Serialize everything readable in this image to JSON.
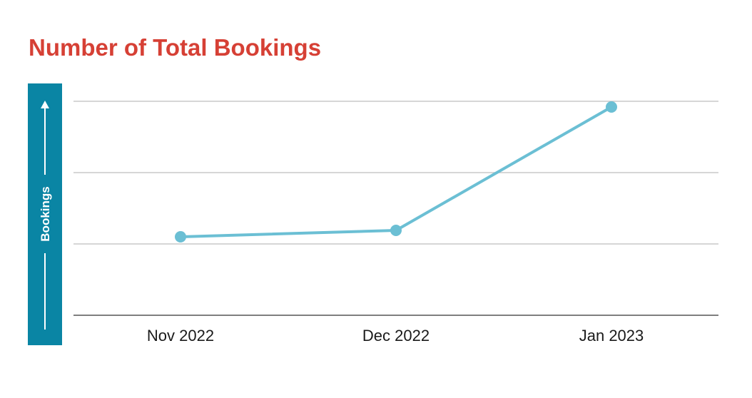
{
  "title": "Number of Total Bookings",
  "colors": {
    "title": "#d64035",
    "axis_banner": "#0a85a4",
    "series": "#6bbfd4",
    "grid": "#c8c8c8",
    "baseline": "#555555"
  },
  "chart_data": {
    "type": "line",
    "title": "Number of Total Bookings",
    "xlabel": "",
    "ylabel": "Bookings",
    "ylabel_style": "vertical banner with up arrow",
    "categories": [
      "Nov 2022",
      "Dec 2022",
      "Jan 2023"
    ],
    "series": [
      {
        "values": [
          1.1,
          1.19,
          2.92
        ]
      }
    ],
    "ylim": [
      0,
      3
    ],
    "y_tick_labels_shown": false,
    "grid": true,
    "legend": "none"
  }
}
